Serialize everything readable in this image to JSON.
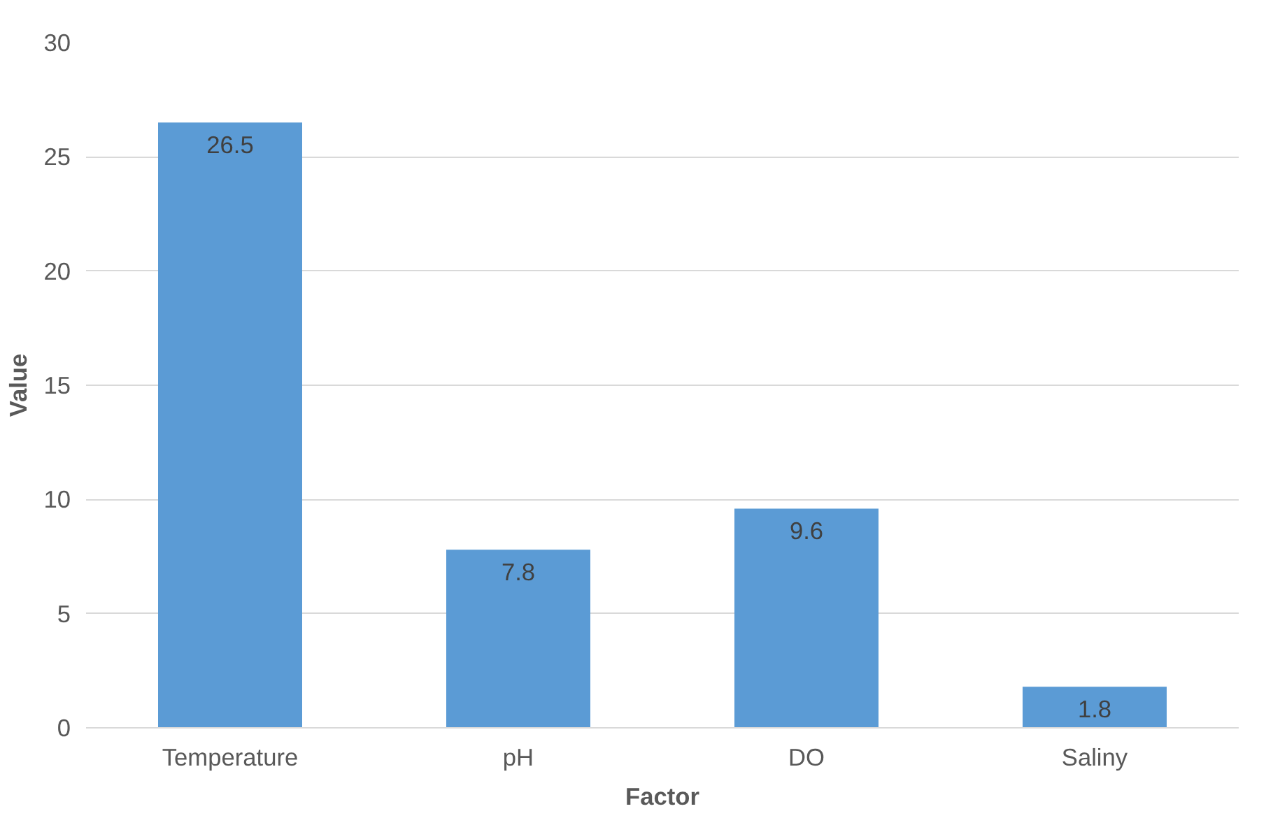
{
  "chart_data": {
    "type": "bar",
    "xlabel": "Factor",
    "ylabel": "Value",
    "categories": [
      "Temperature",
      "pH",
      "DO",
      "Saliny"
    ],
    "values": [
      26.5,
      7.8,
      9.6,
      1.8
    ],
    "color": "#5b9bd5",
    "ylim": [
      0,
      30
    ],
    "yticks": [
      0,
      5,
      10,
      15,
      20,
      25,
      30
    ],
    "grid": "y",
    "data_labels": true
  }
}
